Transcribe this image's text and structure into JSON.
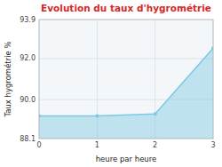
{
  "chart_data": {
    "type": "area",
    "title": "Evolution du taux d'hygrométrie",
    "x_label": "heure par heure",
    "y_label": "Taux hygrométrie %",
    "x": [
      0,
      1,
      2,
      3
    ],
    "values": [
      89.2,
      89.2,
      89.3,
      92.5
    ],
    "color": "#7ec8e3",
    "marker": "circle",
    "xlim": [
      0,
      3
    ],
    "ylim": [
      88.1,
      93.9
    ],
    "xticks": [
      0,
      1,
      2,
      3
    ],
    "yticks": [
      88.1,
      {
        "value": 90.0,
        "label": "90.0"
      },
      {
        "value": 92.0,
        "label": "92.0"
      },
      93.9
    ],
    "grid": true
  }
}
